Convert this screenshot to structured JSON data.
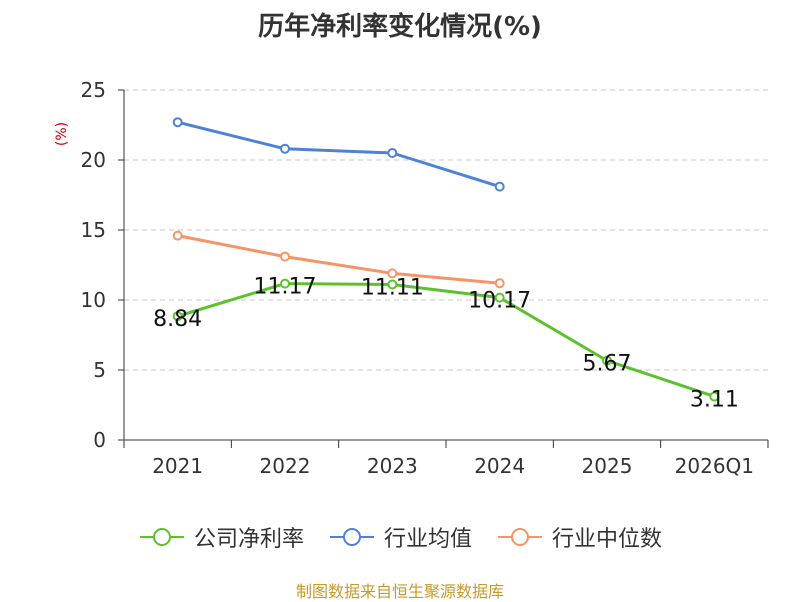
{
  "chart_data": {
    "type": "line",
    "title": "历年净利率变化情况(%)",
    "ylabel": "(%)",
    "xlabel": "",
    "categories": [
      "2021",
      "2022",
      "2023",
      "2024",
      "2025",
      "2026Q1"
    ],
    "ylim": [
      0,
      25
    ],
    "yticks": [
      0,
      5,
      10,
      15,
      20,
      25
    ],
    "grid": true,
    "legend_position": "bottom",
    "series": [
      {
        "name": "公司净利率",
        "color": "#5cc12d",
        "values": [
          8.84,
          11.17,
          11.11,
          10.17,
          5.67,
          3.11
        ],
        "labels": [
          "8.84",
          "11.17",
          "11.11",
          "10.17",
          "5.67",
          "3.11"
        ]
      },
      {
        "name": "行业均值",
        "color": "#4f81d8",
        "values": [
          22.7,
          20.8,
          20.5,
          18.1,
          null,
          null
        ]
      },
      {
        "name": "行业中位数",
        "color": "#f59467",
        "values": [
          14.6,
          13.1,
          11.9,
          11.2,
          null,
          null
        ]
      }
    ]
  },
  "source": "制图数据来自恒生聚源数据库"
}
